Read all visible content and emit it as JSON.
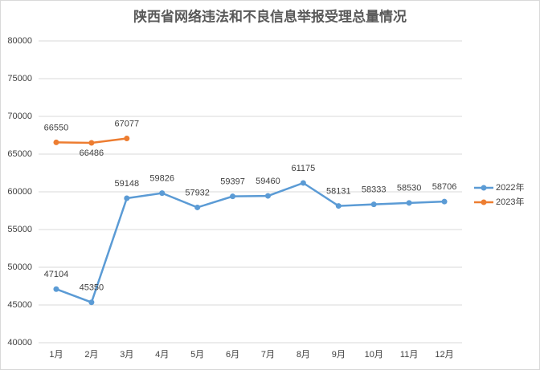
{
  "chart_data": {
    "type": "line",
    "title": "陕西省网络违法和不良信息举报受理总量情况",
    "categories": [
      "1月",
      "2月",
      "3月",
      "4月",
      "5月",
      "6月",
      "7月",
      "8月",
      "9月",
      "10月",
      "11月",
      "12月"
    ],
    "series": [
      {
        "name": "2022年",
        "color": "#5b9bd5",
        "values": [
          47104,
          45350,
          59148,
          59826,
          57932,
          59397,
          59460,
          61175,
          58131,
          58333,
          58530,
          58706
        ]
      },
      {
        "name": "2023年",
        "color": "#ed7d31",
        "values": [
          66550,
          66486,
          67077,
          null,
          null,
          null,
          null,
          null,
          null,
          null,
          null,
          null
        ]
      }
    ],
    "ylim": [
      40000,
      80000
    ],
    "yticks": [
      40000,
      45000,
      50000,
      55000,
      60000,
      65000,
      70000,
      75000,
      80000
    ],
    "grid": true,
    "legend": "right"
  }
}
